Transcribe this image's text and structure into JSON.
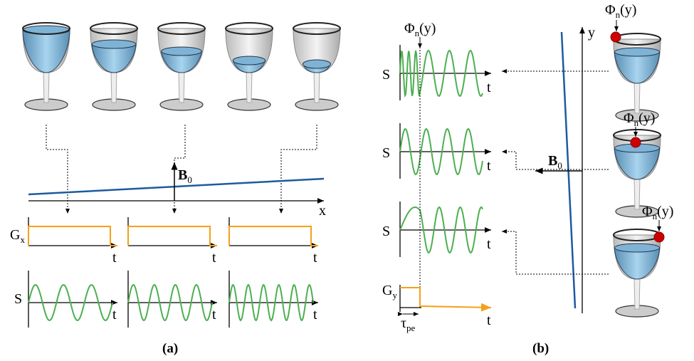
{
  "panel_a": {
    "caption": "(a)",
    "field_label": {
      "base": "B",
      "sub": "0"
    },
    "axis_label": "x",
    "gradient_label": {
      "base": "G",
      "sub": "x"
    },
    "signal_label": "S",
    "time_label": "t"
  },
  "panel_b": {
    "caption": "(b)",
    "phase_label": {
      "base": "Φ",
      "sub": "n",
      "suffix": "(y)"
    },
    "signal_label": "S",
    "time_label": "t",
    "axis_label": "y",
    "field_label": {
      "base": "B",
      "sub": "0"
    },
    "gradient_label": {
      "base": "G",
      "sub": "y"
    },
    "delay_label": {
      "base": "τ",
      "sub": "pe"
    }
  }
}
